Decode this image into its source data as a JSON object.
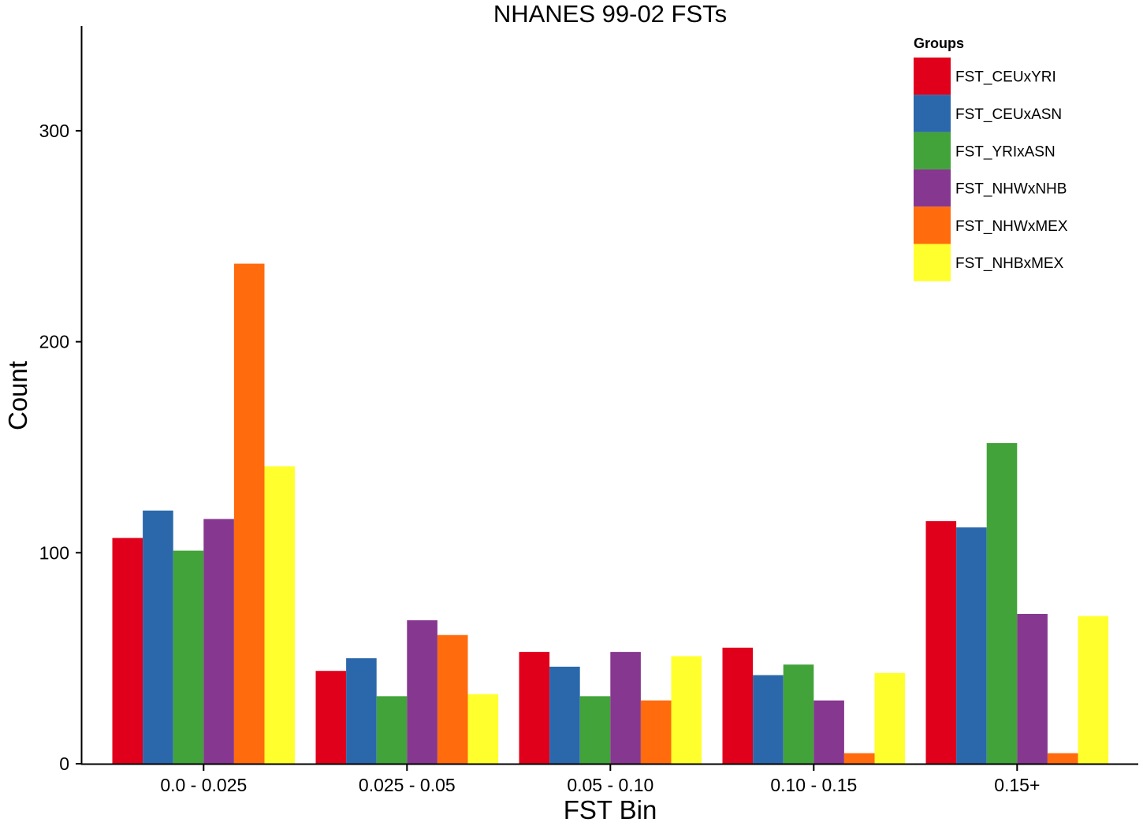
{
  "chart_data": {
    "type": "bar",
    "title": "NHANES 99-02 FSTs",
    "xlabel": "FST Bin",
    "ylabel": "Count",
    "ylim": [
      0,
      350
    ],
    "yticks": [
      0,
      100,
      200,
      300
    ],
    "grid": false,
    "legend": {
      "title": "Groups",
      "position": "top-right"
    },
    "categories": [
      "0.0 - 0.025",
      "0.025 - 0.05",
      "0.05 - 0.10",
      "0.10 - 0.15",
      "0.15+"
    ],
    "series": [
      {
        "name": "FST_CEUxYRI",
        "color": "#E0001B",
        "values": [
          107,
          44,
          53,
          55,
          115
        ]
      },
      {
        "name": "FST_CEUxASN",
        "color": "#2B68AB",
        "values": [
          120,
          50,
          46,
          42,
          112
        ]
      },
      {
        "name": "FST_YRIxASN",
        "color": "#41A33A",
        "values": [
          101,
          32,
          32,
          47,
          152
        ]
      },
      {
        "name": "FST_NHWxNHB",
        "color": "#86378F",
        "values": [
          116,
          68,
          53,
          30,
          71
        ]
      },
      {
        "name": "FST_NHWxMEX",
        "color": "#FF6B0D",
        "values": [
          237,
          61,
          30,
          5,
          5
        ]
      },
      {
        "name": "FST_NHBxMEX",
        "color": "#FFFF2E",
        "values": [
          141,
          33,
          51,
          43,
          70
        ]
      }
    ]
  }
}
